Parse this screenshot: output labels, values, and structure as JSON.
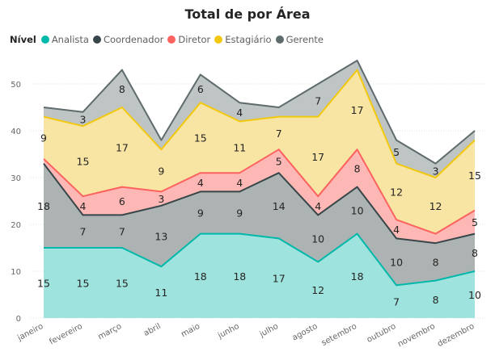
{
  "chart_data": {
    "type": "area",
    "stacked": true,
    "title": "Total de por Área",
    "legend_title": "Nível",
    "legend_position": "top-left",
    "grid": true,
    "ylim": [
      0,
      55
    ],
    "yticks": [
      "0",
      "10",
      "20",
      "30",
      "40",
      "50"
    ],
    "categories": [
      "janeiro",
      "fevereiro",
      "março",
      "abril",
      "maio",
      "junho",
      "julho",
      "agosto",
      "setembro",
      "outubro",
      "novembro",
      "dezembro"
    ],
    "series": [
      {
        "name": "Analista",
        "color": "#01B8AA",
        "fill": "#9EE3DD",
        "values": [
          15,
          15,
          15,
          11,
          18,
          18,
          17,
          12,
          18,
          7,
          8,
          10
        ]
      },
      {
        "name": "Coordenador",
        "color": "#374649",
        "fill": "#ADB2B3",
        "values": [
          18,
          7,
          7,
          13,
          9,
          9,
          14,
          10,
          10,
          10,
          8,
          8
        ]
      },
      {
        "name": "Diretor",
        "color": "#FD625E",
        "fill": "#FDB8B6",
        "values": [
          1,
          4,
          6,
          3,
          4,
          4,
          5,
          4,
          8,
          4,
          2,
          5
        ]
      },
      {
        "name": "Estagiário",
        "color": "#F2C80F",
        "fill": "#F8E5A4",
        "values": [
          9,
          15,
          17,
          9,
          15,
          11,
          7,
          17,
          17,
          12,
          12,
          15
        ]
      },
      {
        "name": "Gerente",
        "color": "#5F6B6D",
        "fill": "#BFC4C5",
        "values": [
          2,
          3,
          8,
          2,
          6,
          4,
          2,
          7,
          2,
          5,
          3,
          2
        ]
      }
    ],
    "data_labels": [
      [
        15,
        15,
        15,
        11,
        18,
        18,
        17,
        12,
        18,
        7,
        8,
        10
      ],
      [
        18,
        7,
        7,
        13,
        9,
        9,
        14,
        10,
        10,
        10,
        8,
        8
      ],
      [
        null,
        4,
        6,
        3,
        4,
        4,
        5,
        4,
        8,
        4,
        null,
        5
      ],
      [
        9,
        15,
        17,
        9,
        15,
        11,
        7,
        17,
        17,
        12,
        12,
        15
      ],
      [
        null,
        3,
        8,
        null,
        6,
        4,
        null,
        7,
        null,
        5,
        3,
        null
      ]
    ]
  }
}
